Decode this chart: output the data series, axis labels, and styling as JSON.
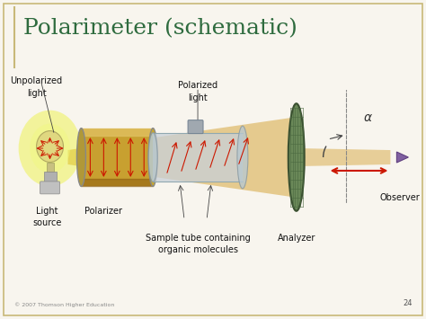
{
  "title": "Polarimeter (schematic)",
  "title_color": "#2e6b3e",
  "title_fontsize": 18,
  "bg_color": "#f8f5ee",
  "border_color": "#c8b878",
  "labels": {
    "unpolarized_light": "Unpolarized\nlight",
    "polarized_light": "Polarized\nlight",
    "light_source": "Light\nsource",
    "polarizer": "Polarizer",
    "sample_tube": "Sample tube containing\norganic molecules",
    "analyzer": "Analyzer",
    "observer": "Observer",
    "alpha": "α",
    "copyright": "© 2007 Thomson Higher Education",
    "page_num": "24"
  },
  "colors": {
    "light_beam": "#d4a030",
    "tube_gold": "#c8a030",
    "tube_gold_light": "#e0c060",
    "tube_gold_dark": "#906010",
    "tube_rim": "#a09090",
    "red_arrows": "#cc1800",
    "analyzer_disk": "#6a8858",
    "analyzer_edge": "#3a5030",
    "bulb_glow_outer": "#e8f000",
    "bulb_glow_inner": "#f0f880",
    "bulb_glass": "#e8e4a0",
    "bulb_metal": "#c0c0c0",
    "sample_tube_glass": "#c8d8e0",
    "sample_tube_edge": "#90a8b0",
    "dashed_line": "#888888",
    "observer_arrow": "#cc1800",
    "arc_line": "#444444",
    "label_color": "#111111"
  }
}
